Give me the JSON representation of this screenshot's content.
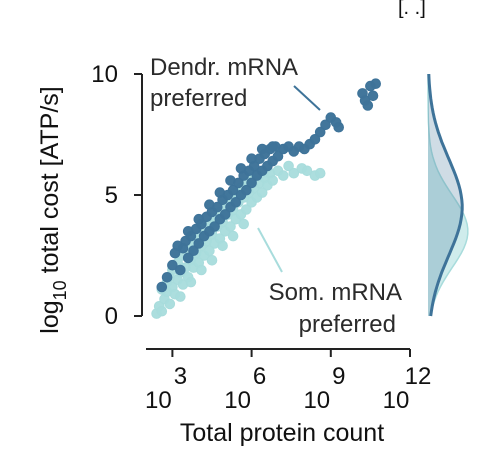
{
  "chart_data": {
    "type": "scatter",
    "title": "",
    "xlabel": "Total protein count",
    "ylabel": "log10 total cost [ATP/s]",
    "x_scale": "log10",
    "xlim": [
      2.0,
      12.0
    ],
    "ylim": [
      0,
      10
    ],
    "xticks": [
      {
        "value": 3,
        "base": "10",
        "exp": "3"
      },
      {
        "value": 6,
        "base": "10",
        "exp": "6"
      },
      {
        "value": 9,
        "base": "10",
        "exp": "9"
      },
      {
        "value": 12,
        "base": "10",
        "exp": "12"
      }
    ],
    "yticks": [
      0,
      5,
      10
    ],
    "grid": false,
    "annotations": [
      {
        "lines": [
          "Dendr. mRNA",
          "preferred"
        ],
        "series": "Dendr. mRNA preferred"
      },
      {
        "lines": [
          "Som. mRNA",
          "preferred"
        ],
        "series": "Som. mRNA preferred"
      }
    ],
    "corner_mark": "[. .]",
    "series": [
      {
        "name": "Som. mRNA preferred",
        "color": "#a8dcdc",
        "points": [
          [
            2.4,
            0.1
          ],
          [
            2.5,
            0.4
          ],
          [
            2.6,
            0.2
          ],
          [
            2.7,
            0.7
          ],
          [
            2.8,
            1.0
          ],
          [
            2.8,
            1.4
          ],
          [
            2.9,
            0.5
          ],
          [
            3.0,
            1.2
          ],
          [
            3.0,
            1.9
          ],
          [
            3.1,
            0.9
          ],
          [
            3.2,
            1.5
          ],
          [
            3.2,
            2.2
          ],
          [
            3.3,
            1.8
          ],
          [
            3.4,
            2.5
          ],
          [
            3.4,
            1.3
          ],
          [
            3.5,
            2.0
          ],
          [
            3.6,
            2.7
          ],
          [
            3.6,
            1.6
          ],
          [
            3.7,
            2.3
          ],
          [
            3.8,
            3.0
          ],
          [
            3.8,
            2.0
          ],
          [
            3.9,
            2.6
          ],
          [
            4.0,
            3.3
          ],
          [
            4.0,
            2.2
          ],
          [
            4.1,
            2.9
          ],
          [
            4.2,
            3.6
          ],
          [
            4.2,
            2.5
          ],
          [
            4.3,
            3.1
          ],
          [
            4.4,
            3.8
          ],
          [
            4.4,
            2.7
          ],
          [
            4.5,
            3.4
          ],
          [
            4.6,
            4.0
          ],
          [
            4.6,
            3.0
          ],
          [
            4.7,
            3.7
          ],
          [
            4.8,
            4.3
          ],
          [
            4.8,
            3.2
          ],
          [
            4.9,
            3.9
          ],
          [
            5.0,
            4.6
          ],
          [
            5.0,
            3.5
          ],
          [
            5.1,
            4.2
          ],
          [
            5.2,
            4.9
          ],
          [
            5.2,
            3.7
          ],
          [
            5.3,
            4.4
          ],
          [
            5.4,
            5.1
          ],
          [
            5.4,
            4.0
          ],
          [
            5.5,
            4.7
          ],
          [
            5.6,
            5.3
          ],
          [
            5.6,
            4.2
          ],
          [
            5.7,
            4.9
          ],
          [
            5.8,
            5.5
          ],
          [
            5.8,
            4.4
          ],
          [
            5.9,
            5.1
          ],
          [
            6.0,
            5.7
          ],
          [
            6.0,
            4.7
          ],
          [
            6.1,
            5.3
          ],
          [
            6.2,
            5.9
          ],
          [
            6.2,
            4.9
          ],
          [
            6.3,
            5.5
          ],
          [
            6.4,
            5.1
          ],
          [
            6.5,
            5.7
          ],
          [
            6.6,
            5.4
          ],
          [
            6.7,
            5.9
          ],
          [
            6.8,
            5.6
          ],
          [
            7.0,
            6.0
          ],
          [
            7.2,
            5.8
          ],
          [
            7.4,
            6.2
          ],
          [
            7.6,
            5.9
          ],
          [
            7.9,
            6.1
          ],
          [
            8.1,
            6.0
          ],
          [
            8.4,
            5.8
          ],
          [
            8.6,
            5.9
          ],
          [
            2.6,
            1.1
          ],
          [
            2.9,
            1.6
          ],
          [
            3.3,
            0.8
          ],
          [
            3.7,
            1.4
          ],
          [
            4.1,
            1.9
          ],
          [
            4.5,
            2.3
          ],
          [
            4.9,
            2.9
          ],
          [
            5.3,
            3.3
          ],
          [
            5.7,
            3.8
          ]
        ]
      },
      {
        "name": "Dendr. mRNA preferred",
        "color": "#3e7399",
        "points": [
          [
            2.6,
            1.2
          ],
          [
            2.8,
            1.6
          ],
          [
            3.0,
            2.1
          ],
          [
            3.1,
            2.6
          ],
          [
            3.3,
            1.9
          ],
          [
            3.4,
            2.8
          ],
          [
            3.5,
            3.1
          ],
          [
            3.6,
            2.4
          ],
          [
            3.7,
            3.3
          ],
          [
            3.8,
            2.7
          ],
          [
            3.9,
            3.6
          ],
          [
            4.0,
            3.0
          ],
          [
            4.1,
            3.8
          ],
          [
            4.2,
            3.3
          ],
          [
            4.3,
            4.1
          ],
          [
            4.4,
            3.5
          ],
          [
            4.5,
            4.3
          ],
          [
            4.6,
            3.7
          ],
          [
            4.7,
            4.5
          ],
          [
            4.8,
            4.0
          ],
          [
            4.9,
            4.8
          ],
          [
            5.0,
            4.2
          ],
          [
            5.1,
            5.0
          ],
          [
            5.2,
            4.5
          ],
          [
            5.3,
            5.2
          ],
          [
            5.4,
            4.7
          ],
          [
            5.5,
            5.5
          ],
          [
            5.6,
            5.0
          ],
          [
            5.7,
            5.8
          ],
          [
            5.8,
            5.2
          ],
          [
            5.9,
            6.0
          ],
          [
            6.0,
            5.5
          ],
          [
            6.1,
            6.2
          ],
          [
            6.2,
            5.8
          ],
          [
            6.3,
            6.5
          ],
          [
            6.4,
            6.0
          ],
          [
            6.5,
            6.7
          ],
          [
            6.6,
            6.2
          ],
          [
            6.7,
            6.9
          ],
          [
            6.8,
            6.4
          ],
          [
            6.9,
            7.0
          ],
          [
            7.0,
            6.6
          ],
          [
            7.2,
            6.9
          ],
          [
            7.4,
            7.0
          ],
          [
            7.6,
            6.8
          ],
          [
            7.8,
            7.0
          ],
          [
            8.0,
            6.9
          ],
          [
            8.2,
            7.1
          ],
          [
            8.4,
            7.3
          ],
          [
            8.6,
            7.6
          ],
          [
            8.8,
            7.9
          ],
          [
            9.0,
            8.2
          ],
          [
            9.2,
            8.0
          ],
          [
            9.3,
            7.8
          ],
          [
            10.2,
            9.2
          ],
          [
            10.3,
            8.9
          ],
          [
            10.5,
            9.5
          ],
          [
            10.6,
            9.1
          ],
          [
            10.7,
            9.6
          ],
          [
            10.4,
            8.7
          ],
          [
            3.2,
            2.9
          ],
          [
            3.6,
            3.5
          ],
          [
            4.0,
            4.0
          ],
          [
            4.4,
            4.6
          ],
          [
            4.8,
            5.1
          ],
          [
            5.2,
            5.6
          ],
          [
            5.6,
            6.1
          ],
          [
            6.0,
            6.5
          ],
          [
            6.4,
            6.9
          ],
          [
            6.8,
            7.0
          ]
        ]
      }
    ],
    "marginal_density": [
      {
        "series": "Som. mRNA preferred",
        "peak_y": 3.5,
        "filled": true
      },
      {
        "series": "Dendr. mRNA preferred",
        "peak_y": 4.5,
        "filled": true
      }
    ]
  }
}
